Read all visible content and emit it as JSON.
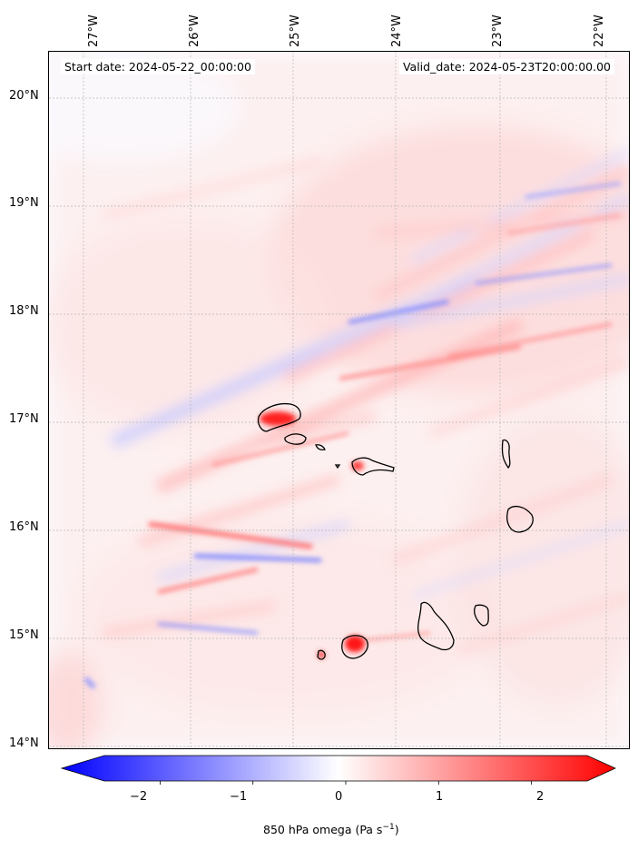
{
  "map": {
    "start_date_text": "Start date: 2024-05-22_00:00:00",
    "valid_date_text": "Valid_date: 2024-05-23T20:00:00.00",
    "longitude_labels": [
      "27°W",
      "26°W",
      "25°W",
      "24°W",
      "23°W",
      "22°W"
    ],
    "latitude_labels": [
      "20°N",
      "19°N",
      "18°N",
      "17°N",
      "16°N",
      "15°N",
      "14°N"
    ],
    "field_colors": {
      "negative": "#0000ff",
      "neutral": "#ffffff",
      "positive": "#ff0000"
    },
    "coastline_color": "#000000",
    "grid": "dotted grey"
  },
  "colorbar": {
    "tick_labels": [
      "−2",
      "−1",
      "0",
      "1",
      "2"
    ],
    "label_prefix": "850 hPa omega (Pa s",
    "label_exponent": "−1",
    "label_suffix": ")",
    "range": [
      -2.6,
      2.6
    ],
    "extend": "both"
  }
}
